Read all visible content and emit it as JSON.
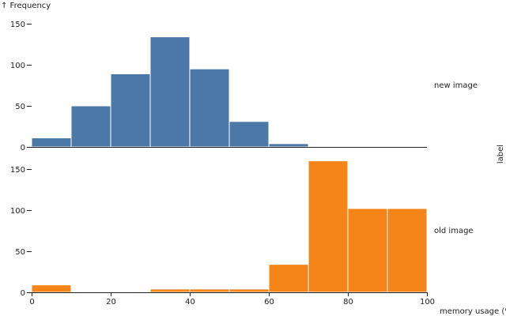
{
  "chart_data": {
    "type": "bar",
    "kind": "histogram",
    "ylabel": "↑ Frequency",
    "xlabel": "memory usage (%)",
    "legend_title": "label",
    "xlim": [
      0,
      100
    ],
    "ylim": [
      0,
      150
    ],
    "x_ticks": [
      0,
      20,
      40,
      60,
      80,
      100
    ],
    "y_ticks": [
      0,
      50,
      100,
      150
    ],
    "bin_edges": [
      0,
      10,
      20,
      30,
      40,
      50,
      60,
      70,
      80,
      90,
      100
    ],
    "series": [
      {
        "name": "new image",
        "color": "#4c78a8",
        "values": [
          11,
          50,
          89,
          134,
          95,
          31,
          4,
          0,
          0,
          0
        ]
      },
      {
        "name": "old image",
        "color": "#f58518",
        "values": [
          9,
          0,
          0,
          4,
          4,
          4,
          34,
          160,
          102,
          102
        ]
      }
    ]
  }
}
